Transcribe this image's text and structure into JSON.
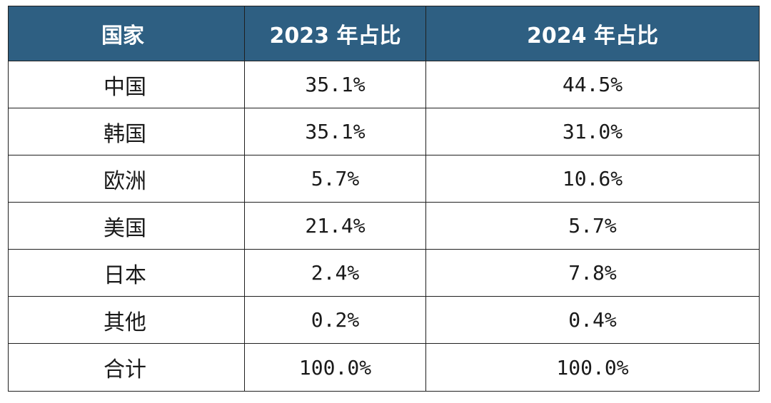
{
  "table": {
    "headers": [
      "国家",
      "2023 年占比",
      "2024 年占比"
    ],
    "rows": [
      {
        "country": "中国",
        "y2023": "35.1%",
        "y2024": "44.5%"
      },
      {
        "country": "韩国",
        "y2023": "35.1%",
        "y2024": "31.0%"
      },
      {
        "country": "欧洲",
        "y2023": "5.7%",
        "y2024": "10.6%"
      },
      {
        "country": "美国",
        "y2023": "21.4%",
        "y2024": "5.7%"
      },
      {
        "country": "日本",
        "y2023": "2.4%",
        "y2024": "7.8%"
      },
      {
        "country": "其他",
        "y2023": "0.2%",
        "y2024": "0.4%"
      },
      {
        "country": "合计",
        "y2023": "100.0%",
        "y2024": "100.0%"
      }
    ]
  },
  "colors": {
    "header_bg": "#2e5f82",
    "header_text": "#ffffff",
    "border": "#1f1f1f"
  }
}
